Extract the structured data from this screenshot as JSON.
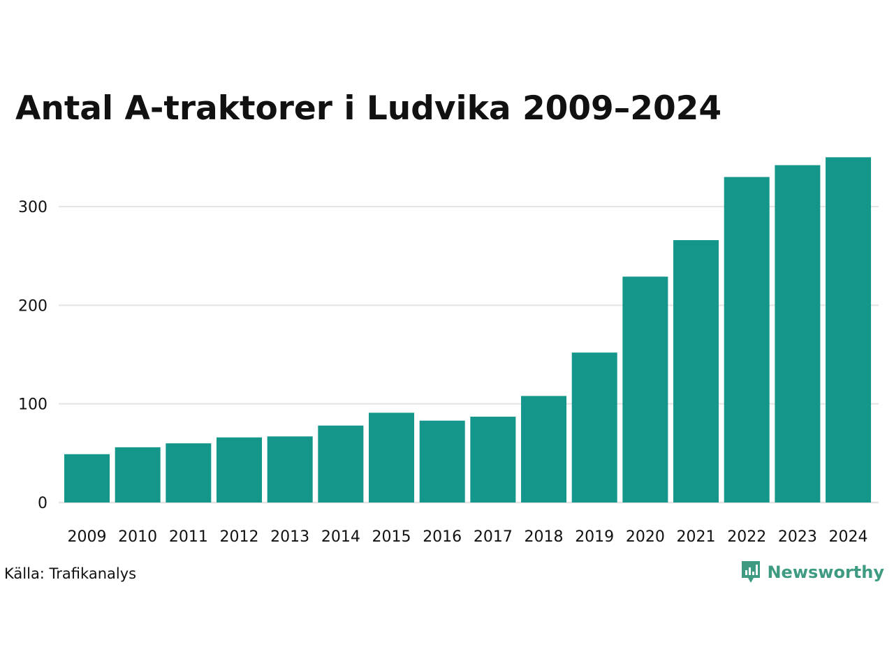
{
  "chart_data": {
    "type": "bar",
    "title": "Antal A-traktorer i Ludvika 2009–2024",
    "categories": [
      "2009",
      "2010",
      "2011",
      "2012",
      "2013",
      "2014",
      "2015",
      "2016",
      "2017",
      "2018",
      "2019",
      "2020",
      "2021",
      "2022",
      "2023",
      "2024"
    ],
    "values": [
      49,
      56,
      60,
      66,
      67,
      78,
      91,
      83,
      87,
      108,
      152,
      229,
      266,
      330,
      342,
      350
    ],
    "y_ticks": [
      0,
      100,
      200,
      300
    ],
    "y_tick_labels": [
      "0",
      "100",
      "200",
      "300"
    ],
    "ylim": [
      0,
      360
    ],
    "xlabel": "",
    "ylabel": "",
    "grid": true,
    "legend": "none",
    "bar_color": "#14978a",
    "grid_color": "#e4e4e4"
  },
  "footer": {
    "source": "Källa: Trafikanalys",
    "brand_name": "Newsworthy",
    "brand_icon": "newsworthy-logo-icon",
    "brand_color": "#3e9b82"
  }
}
